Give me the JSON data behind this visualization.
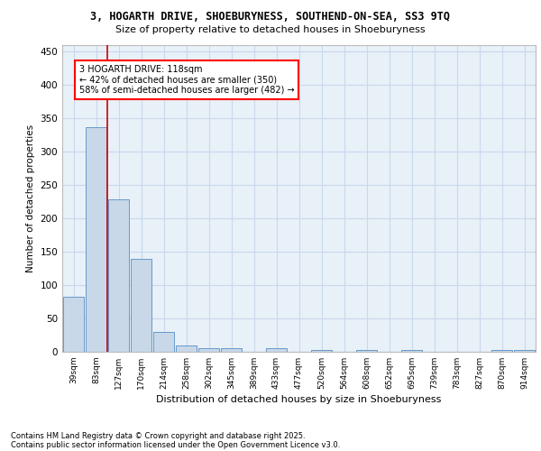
{
  "title_line1": "3, HOGARTH DRIVE, SHOEBURYNESS, SOUTHEND-ON-SEA, SS3 9TQ",
  "title_line2": "Size of property relative to detached houses in Shoeburyness",
  "xlabel": "Distribution of detached houses by size in Shoeburyness",
  "ylabel": "Number of detached properties",
  "categories": [
    "39sqm",
    "83sqm",
    "127sqm",
    "170sqm",
    "214sqm",
    "258sqm",
    "302sqm",
    "345sqm",
    "389sqm",
    "433sqm",
    "477sqm",
    "520sqm",
    "564sqm",
    "608sqm",
    "652sqm",
    "695sqm",
    "739sqm",
    "783sqm",
    "827sqm",
    "870sqm",
    "914sqm"
  ],
  "values": [
    83,
    337,
    228,
    139,
    30,
    10,
    5,
    5,
    0,
    5,
    0,
    3,
    0,
    3,
    0,
    3,
    0,
    0,
    0,
    3,
    3
  ],
  "bar_color": "#c8d8e8",
  "bar_edge_color": "#6699cc",
  "grid_color": "#c8d8ec",
  "background_color": "#e8f0f8",
  "vline_color": "#cc0000",
  "annotation_text": "3 HOGARTH DRIVE: 118sqm\n← 42% of detached houses are smaller (350)\n58% of semi-detached houses are larger (482) →",
  "annotation_box_edgecolor": "red",
  "ylim": [
    0,
    460
  ],
  "yticks": [
    0,
    50,
    100,
    150,
    200,
    250,
    300,
    350,
    400,
    450
  ],
  "footer_line1": "Contains HM Land Registry data © Crown copyright and database right 2025.",
  "footer_line2": "Contains public sector information licensed under the Open Government Licence v3.0."
}
